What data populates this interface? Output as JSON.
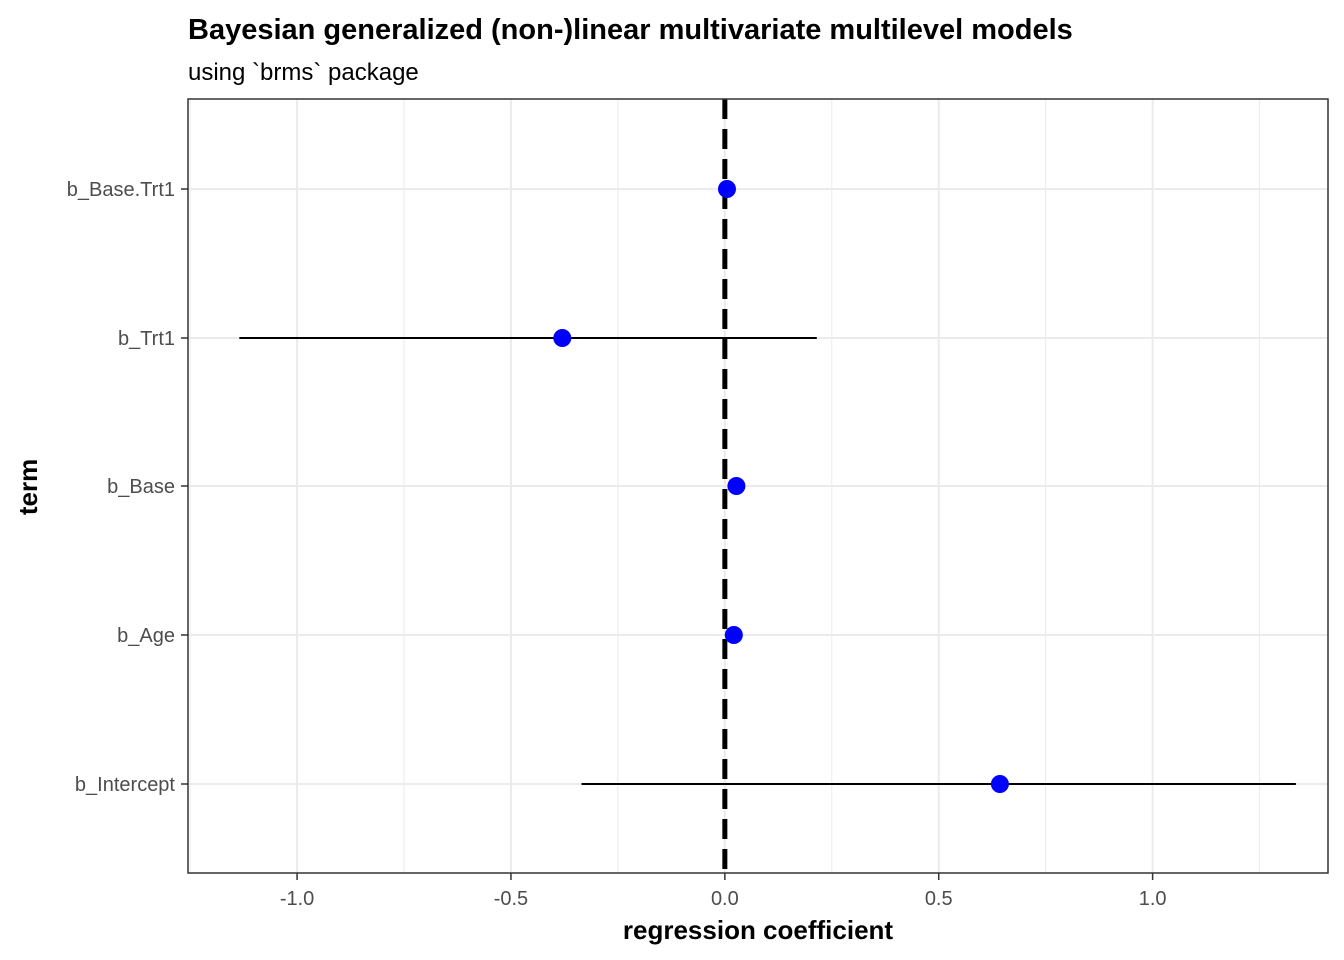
{
  "chart_data": {
    "type": "scatter",
    "title": "Bayesian generalized (non-)linear multivariate multilevel models",
    "subtitle": "using `brms` package",
    "xlabel": "regression coefficient",
    "ylabel": "term",
    "xlim": [
      -1.255,
      1.41
    ],
    "x_ticks": [
      -1.0,
      -0.5,
      0.0,
      0.5,
      1.0
    ],
    "x_tick_labels": [
      "-1.0",
      "-0.5",
      "0.0",
      "0.5",
      "1.0"
    ],
    "terms": [
      "b_Base.Trt1",
      "b_Trt1",
      "b_Base",
      "b_Age",
      "b_Intercept"
    ],
    "series": [
      {
        "estimates": [
          0.005,
          -0.38,
          0.027,
          0.021,
          0.643
        ],
        "lower": [
          0.0,
          -1.135,
          0.02,
          0.0,
          -0.335
        ],
        "upper": [
          0.01,
          0.215,
          0.034,
          0.04,
          1.335
        ]
      }
    ],
    "reference_line": 0.0,
    "grid": true,
    "point_color": "#0000ff",
    "interval_color": "#000000",
    "reference_line_color": "#000000",
    "gridline_color": "#ebebeb",
    "panel_border_color": "#333333"
  }
}
